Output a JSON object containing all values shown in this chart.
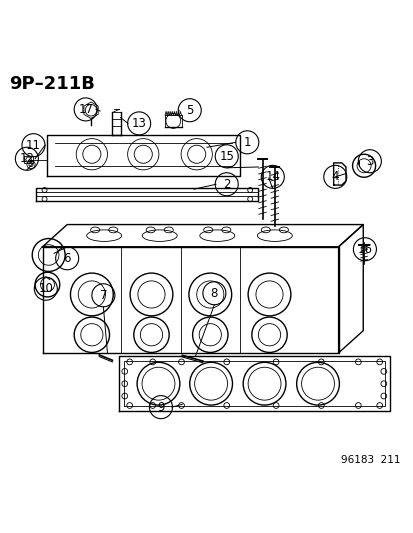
{
  "title": "9P–211B",
  "footer": "96183  211",
  "bg_color": "#ffffff",
  "line_color": "#000000",
  "label_color": "#000000",
  "title_fontsize": 13,
  "label_fontsize": 8.5,
  "footer_fontsize": 7.5
}
